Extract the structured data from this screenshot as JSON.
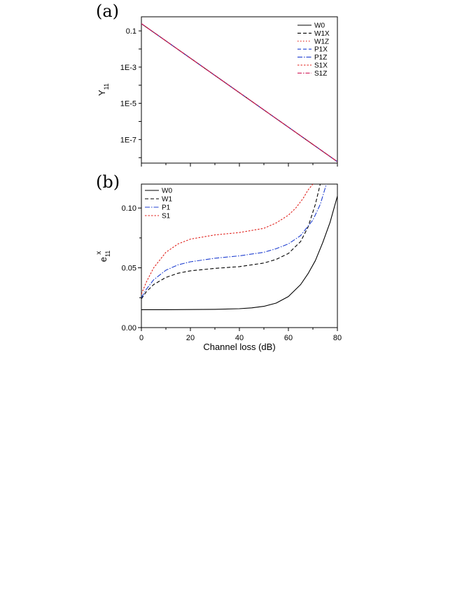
{
  "chart_data": [
    {
      "panel": "(a)",
      "type": "line",
      "ylabel_main": "Y",
      "ylabel_sub": "11",
      "xlabel": "",
      "xlim": [
        0,
        80
      ],
      "ylim": [
        5e-09,
        0.6
      ],
      "yscale": "log",
      "grid": false,
      "legend_position": "top-right",
      "y_ticks": [
        {
          "value": 0.1,
          "label": "0.1"
        },
        {
          "value": 0.001,
          "label": "1E-3"
        },
        {
          "value": 1e-05,
          "label": "1E-5"
        },
        {
          "value": 1e-07,
          "label": "1E-7"
        }
      ],
      "series": [
        {
          "name": "W0",
          "color": "#000000",
          "dash": "",
          "x": [
            0,
            80
          ],
          "y": [
            0.25,
            6e-09
          ]
        },
        {
          "name": "W1X",
          "color": "#000000",
          "dash": "5,3",
          "x": [
            0,
            80
          ],
          "y": [
            0.25,
            6e-09
          ]
        },
        {
          "name": "W1Z",
          "color": "#e0201b",
          "dash": "1.5,2.5",
          "x": [
            0,
            80
          ],
          "y": [
            0.25,
            6e-09
          ]
        },
        {
          "name": "P1X",
          "color": "#1f3fd0",
          "dash": "5,3",
          "x": [
            0,
            80
          ],
          "y": [
            0.25,
            6e-09
          ]
        },
        {
          "name": "P1Z",
          "color": "#1f3fd0",
          "dash": "7,2,1.5,2",
          "x": [
            0,
            80
          ],
          "y": [
            0.25,
            6e-09
          ]
        },
        {
          "name": "S1X",
          "color": "#e0201b",
          "dash": "2.5,2",
          "x": [
            0,
            80
          ],
          "y": [
            0.25,
            6e-09
          ]
        },
        {
          "name": "S1Z",
          "color": "#d11d5a",
          "dash": "6,2,1.5,2",
          "x": [
            0,
            80
          ],
          "y": [
            0.25,
            6e-09
          ]
        }
      ]
    },
    {
      "panel": "(b)",
      "type": "line",
      "ylabel_main": "e",
      "ylabel_sub": "11",
      "ylabel_sup": "x",
      "xlabel": "Channel loss (dB)",
      "xlim": [
        0,
        80
      ],
      "ylim": [
        0,
        0.12
      ],
      "yscale": "linear",
      "grid": false,
      "legend_position": "top-left",
      "x_ticks": [
        {
          "value": 0,
          "label": "0"
        },
        {
          "value": 20,
          "label": "20"
        },
        {
          "value": 40,
          "label": "40"
        },
        {
          "value": 60,
          "label": "60"
        },
        {
          "value": 80,
          "label": "80"
        }
      ],
      "y_ticks": [
        {
          "value": 0,
          "label": "0.00"
        },
        {
          "value": 0.05,
          "label": "0.05"
        },
        {
          "value": 0.1,
          "label": "0.10"
        }
      ],
      "series": [
        {
          "name": "W0",
          "color": "#000000",
          "dash": "",
          "x": [
            0,
            10,
            20,
            30,
            40,
            45,
            50,
            55,
            60,
            65,
            68,
            71,
            74,
            77,
            80
          ],
          "y": [
            0.015,
            0.015,
            0.0151,
            0.0153,
            0.0158,
            0.0165,
            0.0178,
            0.0205,
            0.026,
            0.036,
            0.045,
            0.056,
            0.071,
            0.088,
            0.11
          ]
        },
        {
          "name": "W1",
          "color": "#000000",
          "dash": "5,3",
          "x": [
            0,
            2,
            5,
            10,
            15,
            20,
            30,
            40,
            50,
            55,
            60,
            65,
            68,
            71,
            73
          ],
          "y": [
            0.024,
            0.03,
            0.036,
            0.042,
            0.0455,
            0.0475,
            0.0495,
            0.051,
            0.054,
            0.057,
            0.062,
            0.072,
            0.084,
            0.103,
            0.12
          ]
        },
        {
          "name": "P1",
          "color": "#1f3fd0",
          "dash": "7,2,1.5,2",
          "x": [
            0,
            2,
            5,
            10,
            15,
            20,
            30,
            40,
            50,
            55,
            60,
            65,
            70,
            73,
            75.5
          ],
          "y": [
            0.025,
            0.032,
            0.04,
            0.048,
            0.0525,
            0.055,
            0.058,
            0.06,
            0.063,
            0.066,
            0.07,
            0.077,
            0.09,
            0.103,
            0.12
          ]
        },
        {
          "name": "S1",
          "color": "#e0201b",
          "dash": "2.5,2",
          "x": [
            0,
            2,
            5,
            10,
            15,
            20,
            30,
            40,
            50,
            55,
            60,
            63,
            66,
            68,
            70
          ],
          "y": [
            0.028,
            0.038,
            0.05,
            0.063,
            0.07,
            0.074,
            0.0775,
            0.0795,
            0.083,
            0.0875,
            0.094,
            0.1,
            0.108,
            0.115,
            0.12
          ]
        }
      ]
    }
  ]
}
